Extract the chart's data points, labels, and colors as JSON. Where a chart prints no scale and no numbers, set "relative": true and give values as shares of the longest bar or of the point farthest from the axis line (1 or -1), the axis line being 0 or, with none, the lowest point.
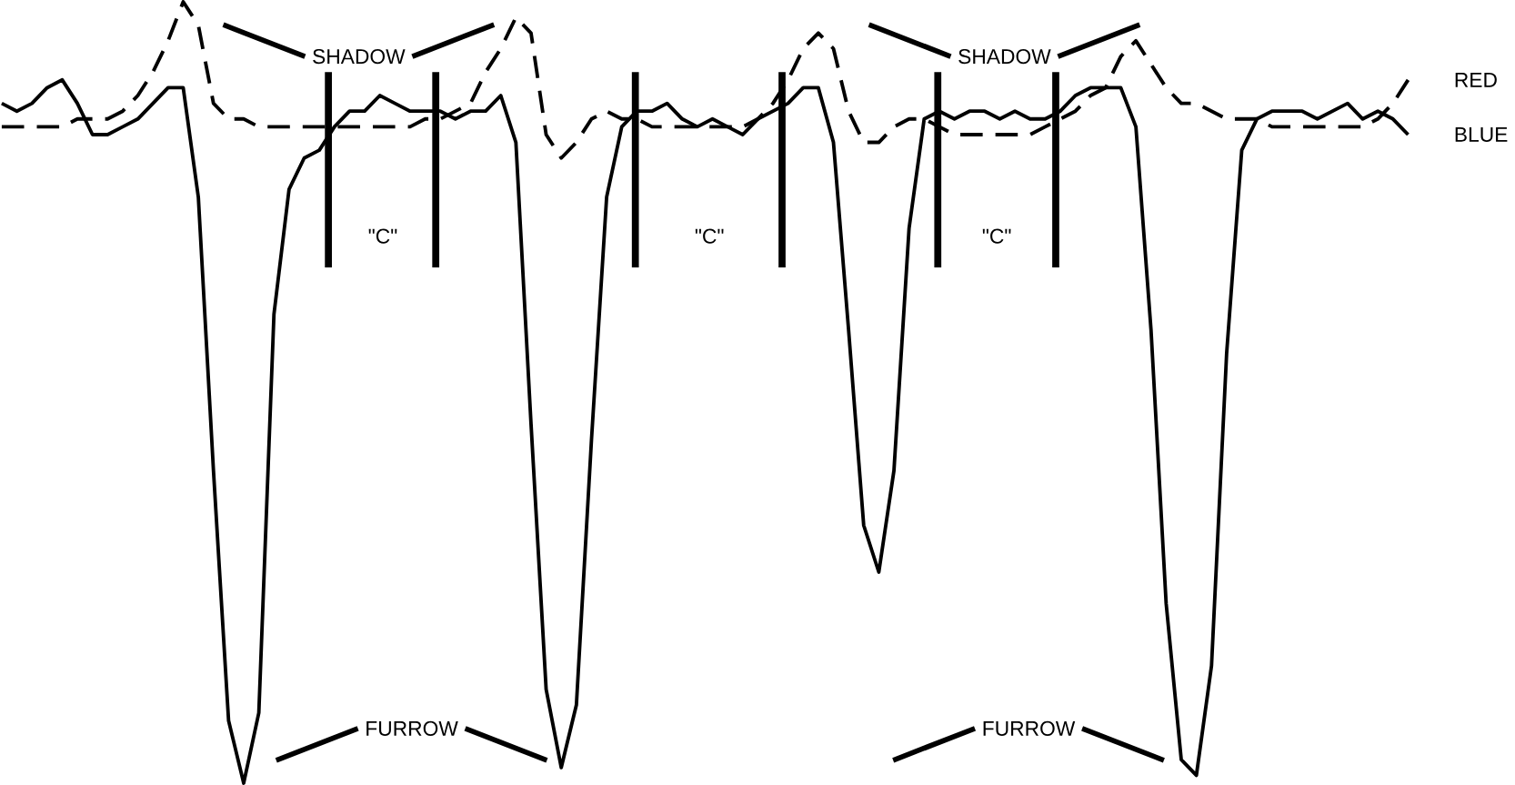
{
  "chart_data": {
    "type": "line",
    "relative": true,
    "legend": false,
    "categories": [
      null,
      null,
      null,
      null,
      null,
      null,
      null,
      null,
      null,
      null,
      null,
      null,
      null,
      null,
      null,
      null,
      null,
      null,
      null,
      null,
      null,
      null,
      null,
      null,
      null,
      null,
      null,
      null,
      null,
      null,
      null,
      null,
      null,
      null,
      null,
      null,
      null,
      null,
      null,
      null,
      null,
      null,
      null,
      null,
      null,
      null,
      null,
      null,
      null,
      null,
      null,
      null,
      null,
      null,
      null,
      null,
      null,
      null,
      null,
      null,
      null,
      null,
      null,
      null,
      null,
      null,
      null,
      null,
      null,
      null,
      null,
      null,
      null,
      null,
      null,
      null,
      null,
      null,
      null,
      null,
      null,
      null,
      null,
      null,
      null,
      null,
      null,
      null,
      null,
      null,
      null,
      null,
      null,
      null
    ],
    "series": [
      {
        "name": "BLUE",
        "color": "#000000",
        "line_style": "solid",
        "values": [
          0.87,
          0.86,
          0.87,
          0.89,
          0.9,
          0.87,
          0.83,
          0.83,
          0.84,
          0.85,
          0.87,
          0.89,
          0.89,
          0.75,
          0.4,
          0.08,
          0.0,
          0.09,
          0.6,
          0.76,
          0.8,
          0.81,
          0.84,
          0.86,
          0.86,
          0.88,
          0.87,
          0.86,
          0.86,
          0.86,
          0.85,
          0.86,
          0.86,
          0.88,
          0.82,
          0.46,
          0.12,
          0.02,
          0.1,
          0.44,
          0.75,
          0.84,
          0.86,
          0.86,
          0.87,
          0.85,
          0.84,
          0.85,
          0.84,
          0.83,
          0.85,
          0.86,
          0.87,
          0.89,
          0.89,
          0.82,
          0.58,
          0.33,
          0.27,
          0.4,
          0.71,
          0.85,
          0.86,
          0.85,
          0.86,
          0.86,
          0.85,
          0.86,
          0.85,
          0.85,
          0.86,
          0.88,
          0.89,
          0.89,
          0.89,
          0.84,
          0.58,
          0.23,
          0.03,
          0.01,
          0.15,
          0.55,
          0.81,
          0.85,
          0.86,
          0.86,
          0.86,
          0.85,
          0.86,
          0.87,
          0.85,
          0.86,
          0.85,
          0.83
        ]
      },
      {
        "name": "RED",
        "color": "#000000",
        "line_style": "dashed",
        "values": [
          0.84,
          0.84,
          0.84,
          0.84,
          0.84,
          0.85,
          0.85,
          0.85,
          0.86,
          0.88,
          0.91,
          0.95,
          1.0,
          0.97,
          0.87,
          0.85,
          0.85,
          0.84,
          0.84,
          0.84,
          0.84,
          0.84,
          0.84,
          0.84,
          0.84,
          0.84,
          0.84,
          0.84,
          0.85,
          0.85,
          0.86,
          0.87,
          0.91,
          0.94,
          0.98,
          0.96,
          0.83,
          0.8,
          0.82,
          0.85,
          0.86,
          0.85,
          0.85,
          0.84,
          0.84,
          0.84,
          0.84,
          0.84,
          0.84,
          0.84,
          0.85,
          0.87,
          0.9,
          0.94,
          0.96,
          0.94,
          0.86,
          0.82,
          0.82,
          0.84,
          0.85,
          0.85,
          0.84,
          0.83,
          0.83,
          0.83,
          0.83,
          0.83,
          0.83,
          0.84,
          0.85,
          0.86,
          0.88,
          0.89,
          0.93,
          0.95,
          0.92,
          0.89,
          0.87,
          0.87,
          0.86,
          0.85,
          0.85,
          0.85,
          0.84,
          0.84,
          0.84,
          0.84,
          0.84,
          0.84,
          0.84,
          0.85,
          0.87,
          0.9
        ]
      }
    ],
    "annotations": [
      "SHADOW",
      "SHADOW",
      "\"C\"",
      "\"C\"",
      "\"C\"",
      "FURROW",
      "FURROW"
    ]
  }
}
